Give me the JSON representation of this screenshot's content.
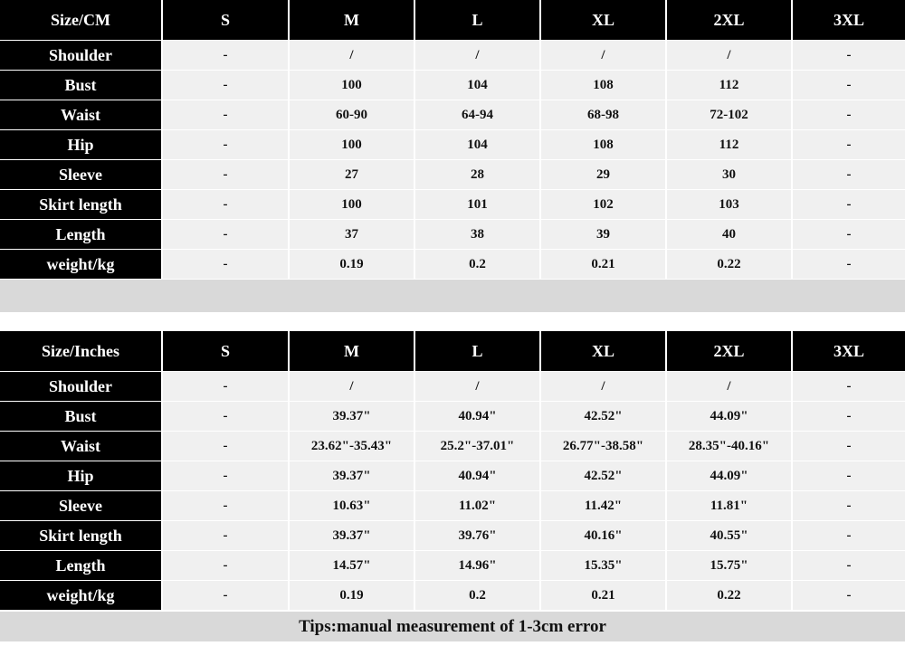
{
  "cm_table": {
    "header": [
      "Size/CM",
      "S",
      "M",
      "L",
      "XL",
      "2XL",
      "3XL"
    ],
    "rows": [
      [
        "Shoulder",
        "-",
        "/",
        "/",
        "/",
        "/",
        "-"
      ],
      [
        "Bust",
        "-",
        "100",
        "104",
        "108",
        "112",
        "-"
      ],
      [
        "Waist",
        "-",
        "60-90",
        "64-94",
        "68-98",
        "72-102",
        "-"
      ],
      [
        "Hip",
        "-",
        "100",
        "104",
        "108",
        "112",
        "-"
      ],
      [
        "Sleeve",
        "-",
        "27",
        "28",
        "29",
        "30",
        "-"
      ],
      [
        "Skirt length",
        "-",
        "100",
        "101",
        "102",
        "103",
        "-"
      ],
      [
        "Length",
        "-",
        "37",
        "38",
        "39",
        "40",
        "-"
      ],
      [
        "weight/kg",
        "-",
        "0.19",
        "0.2",
        "0.21",
        "0.22",
        "-"
      ]
    ]
  },
  "inch_table": {
    "header": [
      "Size/Inches",
      "S",
      "M",
      "L",
      "XL",
      "2XL",
      "3XL"
    ],
    "rows": [
      [
        "Shoulder",
        "-",
        "/",
        "/",
        "/",
        "/",
        "-"
      ],
      [
        "Bust",
        "-",
        "39.37\"",
        "40.94\"",
        "42.52\"",
        "44.09\"",
        "-"
      ],
      [
        "Waist",
        "-",
        "23.62\"-35.43\"",
        "25.2\"-37.01\"",
        "26.77\"-38.58\"",
        "28.35\"-40.16\"",
        "-"
      ],
      [
        "Hip",
        "-",
        "39.37\"",
        "40.94\"",
        "42.52\"",
        "44.09\"",
        "-"
      ],
      [
        "Sleeve",
        "-",
        "10.63\"",
        "11.02\"",
        "11.42\"",
        "11.81\"",
        "-"
      ],
      [
        "Skirt length",
        "-",
        "39.37\"",
        "39.76\"",
        "40.16\"",
        "40.55\"",
        "-"
      ],
      [
        "Length",
        "-",
        "14.57\"",
        "14.96\"",
        "15.35\"",
        "15.75\"",
        "-"
      ],
      [
        "weight/kg",
        "-",
        "0.19",
        "0.2",
        "0.21",
        "0.22",
        "-"
      ]
    ]
  },
  "tips": "Tips:manual measurement of 1-3cm error"
}
